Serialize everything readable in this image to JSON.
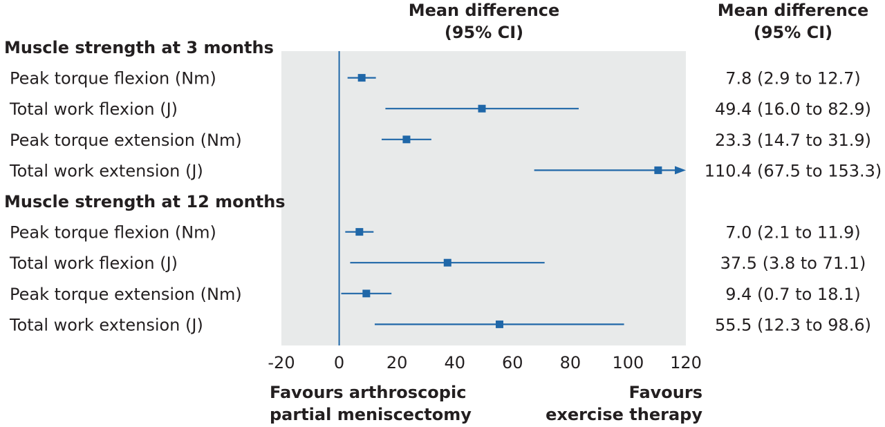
{
  "chart_data": {
    "type": "forest",
    "header_plot": [
      "Mean difference",
      "(95% CI)"
    ],
    "header_right": [
      "Mean difference",
      "(95% CI)"
    ],
    "xlim": [
      -20,
      120
    ],
    "xticks": [
      "-20",
      "0",
      "20",
      "40",
      "60",
      "80",
      "100",
      "120"
    ],
    "reference_line": 0,
    "favours_left": [
      "Favours arthroscopic",
      "partial meniscectomy"
    ],
    "favours_right": [
      "Favours",
      "exercise therapy"
    ],
    "colors": {
      "marker": "#1f67a8",
      "panel": "#e8eaea",
      "text": "#231f20"
    },
    "groups": [
      {
        "label": "Muscle strength at 3 months",
        "rows": [
          {
            "label": "Peak torque flexion (Nm)",
            "estimate": 7.8,
            "lower": 2.9,
            "upper": 12.7,
            "ci_text": "7.8 (2.9 to 12.7)"
          },
          {
            "label": "Total work flexion (J)",
            "estimate": 49.4,
            "lower": 16.0,
            "upper": 82.9,
            "ci_text": "49.4 (16.0 to 82.9)"
          },
          {
            "label": "Peak torque extension (Nm)",
            "estimate": 23.3,
            "lower": 14.7,
            "upper": 31.9,
            "ci_text": "23.3 (14.7 to 31.9)"
          },
          {
            "label": "Total work extension (J)",
            "estimate": 110.4,
            "lower": 67.5,
            "upper": 153.3,
            "ci_text": "110.4 (67.5 to 153.3)"
          }
        ]
      },
      {
        "label": "Muscle strength at 12 months",
        "rows": [
          {
            "label": "Peak torque flexion (Nm)",
            "estimate": 7.0,
            "lower": 2.1,
            "upper": 11.9,
            "ci_text": "7.0 (2.1 to 11.9)"
          },
          {
            "label": "Total work flexion (J)",
            "estimate": 37.5,
            "lower": 3.8,
            "upper": 71.1,
            "ci_text": "37.5 (3.8 to 71.1)"
          },
          {
            "label": "Peak torque extension (Nm)",
            "estimate": 9.4,
            "lower": 0.7,
            "upper": 18.1,
            "ci_text": "9.4 (0.7 to 18.1)"
          },
          {
            "label": "Total work extension (J)",
            "estimate": 55.5,
            "lower": 12.3,
            "upper": 98.6,
            "ci_text": "55.5 (12.3 to 98.6)"
          }
        ]
      }
    ]
  }
}
